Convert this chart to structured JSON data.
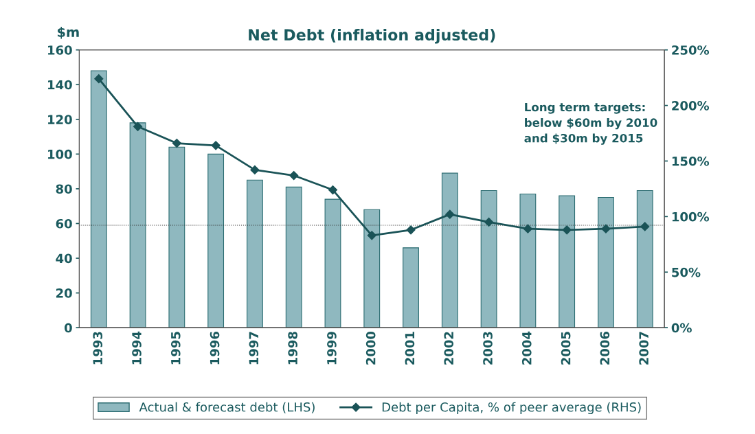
{
  "chart_data": {
    "type": "bar",
    "title": "Net Debt (inflation adjusted)",
    "ylabel": "$m",
    "categories": [
      "1993",
      "1994",
      "1995",
      "1996",
      "1997",
      "1998",
      "1999",
      "2000",
      "2001",
      "2002",
      "2003",
      "2004",
      "2005",
      "2006",
      "2007"
    ],
    "series": [
      {
        "name": "Actual & forecast debt (LHS)",
        "color": "#8fb8bf",
        "values": [
          148,
          118,
          104,
          100,
          85,
          81,
          74,
          68,
          46,
          89,
          79,
          77,
          76,
          75,
          79
        ]
      },
      {
        "name": "Debt per Capita, % of peer average (RHS)",
        "type": "line",
        "axis": "y2",
        "color": "#1a5357",
        "marker": "diamond",
        "line_style": "solid",
        "values": [
          224,
          181,
          166,
          164,
          142,
          137,
          124,
          83,
          88,
          102,
          95,
          89,
          88,
          89,
          91
        ]
      }
    ],
    "ylim": [
      0,
      160
    ],
    "yticks": [
      0,
      20,
      40,
      60,
      80,
      100,
      120,
      140,
      160
    ],
    "y2lim": [
      0,
      250
    ],
    "y2ticks": [
      {
        "value": 0,
        "label": "0%"
      },
      {
        "value": 50,
        "label": "50%"
      },
      {
        "value": 100,
        "label": "100%"
      },
      {
        "value": 150,
        "label": "150%"
      },
      {
        "value": 200,
        "label": "200%"
      },
      {
        "value": 250,
        "label": "250%"
      }
    ],
    "ref_lines": [
      {
        "axis": "y",
        "value": 59,
        "color": "#333333",
        "line_style": "dotted"
      }
    ],
    "annotations": [
      "Long term targets:\nbelow $60m by 2010\nand $30m by 2015"
    ],
    "legend": "bottom",
    "grid": false
  }
}
